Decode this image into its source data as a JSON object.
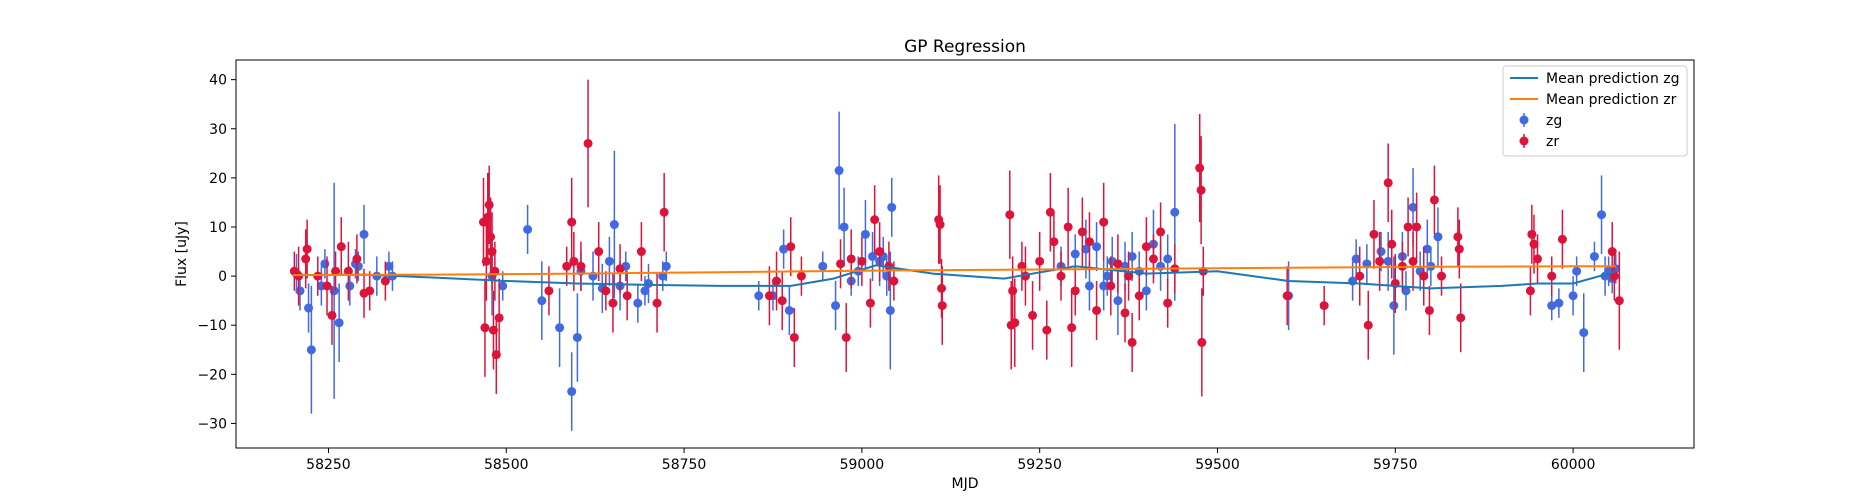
{
  "chart_data": {
    "type": "scatter",
    "title": "GP Regression",
    "xlabel": "MJD",
    "ylabel": "Flux [uJy]",
    "xlim": [
      58120,
      60170
    ],
    "ylim": [
      -35,
      44
    ],
    "xticks": [
      58250,
      58500,
      58750,
      59000,
      59250,
      59500,
      59750,
      60000
    ],
    "yticks": [
      -30,
      -20,
      -10,
      0,
      10,
      20,
      30,
      40
    ],
    "ytick_labels": [
      "−30",
      "−20",
      "−10",
      "0",
      "10",
      "20",
      "30",
      "40"
    ],
    "grid": false,
    "legend_position": "top-right",
    "mean_series": [
      {
        "name": "Mean prediction zg",
        "color": "#1f77b4",
        "x": [
          58200,
          58300,
          58400,
          58500,
          58600,
          58700,
          58800,
          58900,
          58960,
          59020,
          59100,
          59200,
          59300,
          59400,
          59500,
          59600,
          59700,
          59800,
          59900,
          59950,
          60000,
          60050,
          60060
        ],
        "y": [
          0.2,
          0.3,
          -0.3,
          -1.0,
          -1.5,
          -1.8,
          -2.0,
          -2.0,
          -0.5,
          2.2,
          0.5,
          -0.5,
          2.0,
          0.5,
          1.0,
          -1.0,
          -1.5,
          -2.5,
          -2.0,
          -1.5,
          -1.5,
          0.5,
          1.0
        ]
      },
      {
        "name": "Mean prediction zr",
        "color": "#ff7f0e",
        "x": [
          58200,
          58400,
          58600,
          58800,
          59000,
          59200,
          59400,
          59600,
          59800,
          60000,
          60060
        ],
        "y": [
          0.2,
          0.3,
          0.5,
          0.8,
          1.1,
          1.3,
          1.5,
          1.7,
          1.9,
          2.0,
          2.0
        ]
      }
    ],
    "series": [
      {
        "name": "zg",
        "color": "#4169e1",
        "points": [
          [
            58205,
            0.5,
            4
          ],
          [
            58210,
            -3,
            4
          ],
          [
            58222,
            -6.5,
            5
          ],
          [
            58226,
            -15,
            13
          ],
          [
            58240,
            -2,
            4
          ],
          [
            58245,
            2.5,
            3
          ],
          [
            58258,
            -3,
            22
          ],
          [
            58265,
            -9.5,
            8
          ],
          [
            58280,
            -2,
            4
          ],
          [
            58288,
            2.5,
            3
          ],
          [
            58292,
            2,
            3
          ],
          [
            58300,
            8.5,
            6
          ],
          [
            58318,
            0,
            4
          ],
          [
            58335,
            2,
            3
          ],
          [
            58340,
            0,
            3
          ],
          [
            58480,
            0,
            8
          ],
          [
            58495,
            -2,
            3
          ],
          [
            58530,
            9.5,
            5
          ],
          [
            58550,
            -5,
            8
          ],
          [
            58575,
            -10.5,
            8
          ],
          [
            58592,
            -23.5,
            8
          ],
          [
            58600,
            -12.5,
            9
          ],
          [
            58605,
            1,
            4
          ],
          [
            58622,
            0,
            5
          ],
          [
            58635,
            -2.5,
            5
          ],
          [
            58645,
            3,
            5
          ],
          [
            58652,
            10.5,
            15
          ],
          [
            58660,
            -2,
            5
          ],
          [
            58668,
            2,
            3
          ],
          [
            58685,
            -5.5,
            4
          ],
          [
            58695,
            -3,
            3
          ],
          [
            58700,
            -1.5,
            4
          ],
          [
            58720,
            0,
            3
          ],
          [
            58725,
            2,
            3
          ],
          [
            58855,
            -4,
            3
          ],
          [
            58875,
            -4,
            3
          ],
          [
            58890,
            5.5,
            4
          ],
          [
            58898,
            -7,
            5
          ],
          [
            58945,
            2,
            3
          ],
          [
            58963,
            -6,
            5
          ],
          [
            58968,
            21.5,
            12
          ],
          [
            58975,
            10,
            8
          ],
          [
            58985,
            -1,
            3
          ],
          [
            58995,
            1,
            3
          ],
          [
            59005,
            8.5,
            7
          ],
          [
            59015,
            4,
            5
          ],
          [
            59025,
            3,
            5
          ],
          [
            59030,
            4,
            4
          ],
          [
            59035,
            0,
            4
          ],
          [
            59040,
            -7,
            12
          ],
          [
            59042,
            14,
            6
          ],
          [
            59280,
            2,
            4
          ],
          [
            59300,
            4.5,
            4
          ],
          [
            59315,
            5.5,
            6
          ],
          [
            59320,
            -2,
            5
          ],
          [
            59330,
            6,
            5
          ],
          [
            59340,
            -2,
            5
          ],
          [
            59345,
            0,
            4
          ],
          [
            59352,
            3,
            5
          ],
          [
            59360,
            -5,
            7
          ],
          [
            59370,
            2,
            5
          ],
          [
            59380,
            4,
            5
          ],
          [
            59390,
            1,
            4
          ],
          [
            59400,
            -3,
            4
          ],
          [
            59410,
            6.5,
            7
          ],
          [
            59420,
            2,
            5
          ],
          [
            59430,
            3.5,
            5
          ],
          [
            59440,
            13,
            18
          ],
          [
            59600,
            -4,
            7
          ],
          [
            59690,
            -1,
            4
          ],
          [
            59695,
            3.5,
            4
          ],
          [
            59710,
            2.5,
            4
          ],
          [
            59730,
            5,
            4
          ],
          [
            59740,
            3,
            6
          ],
          [
            59748,
            -6,
            10
          ],
          [
            59760,
            4,
            5
          ],
          [
            59765,
            -3,
            4
          ],
          [
            59775,
            14,
            8
          ],
          [
            59785,
            1,
            4
          ],
          [
            59795,
            5.5,
            6
          ],
          [
            59800,
            2,
            4
          ],
          [
            59810,
            8,
            6
          ],
          [
            59970,
            -6,
            3
          ],
          [
            59980,
            -5.5,
            3
          ],
          [
            60000,
            -4,
            4
          ],
          [
            60005,
            1,
            3
          ],
          [
            60015,
            -11.5,
            8
          ],
          [
            60030,
            4,
            3
          ],
          [
            60040,
            12.5,
            8
          ],
          [
            60045,
            0,
            4
          ],
          [
            60050,
            1,
            3
          ],
          [
            60055,
            -0.5,
            3
          ],
          [
            60060,
            1.5,
            3
          ]
        ]
      },
      {
        "name": "zr",
        "color": "#dc143c",
        "points": [
          [
            58202,
            1,
            4
          ],
          [
            58208,
            0,
            6
          ],
          [
            58218,
            3.5,
            6
          ],
          [
            58220,
            5.5,
            6
          ],
          [
            58235,
            0,
            4
          ],
          [
            58248,
            -2,
            6
          ],
          [
            58255,
            -8,
            6
          ],
          [
            58260,
            1,
            4
          ],
          [
            58268,
            6,
            6
          ],
          [
            58278,
            1,
            6
          ],
          [
            58290,
            3.5,
            5
          ],
          [
            58300,
            -3.5,
            5
          ],
          [
            58308,
            -3,
            4
          ],
          [
            58330,
            -1,
            4
          ],
          [
            58468,
            11,
            9
          ],
          [
            58470,
            -10.5,
            10
          ],
          [
            58472,
            3,
            8
          ],
          [
            58474,
            12,
            9
          ],
          [
            58476,
            14.5,
            8
          ],
          [
            58478,
            8,
            8
          ],
          [
            58480,
            5,
            8
          ],
          [
            58482,
            -11,
            8
          ],
          [
            58484,
            1,
            6
          ],
          [
            58486,
            -16,
            8
          ],
          [
            58490,
            -8.5,
            8
          ],
          [
            58560,
            -3,
            5
          ],
          [
            58585,
            2,
            4
          ],
          [
            58592,
            11,
            9
          ],
          [
            58595,
            3,
            6
          ],
          [
            58605,
            2,
            5
          ],
          [
            58615,
            27,
            13
          ],
          [
            58630,
            5,
            6
          ],
          [
            58640,
            -3,
            4
          ],
          [
            58650,
            -5.5,
            6
          ],
          [
            58660,
            1.5,
            5
          ],
          [
            58670,
            -4,
            5
          ],
          [
            58690,
            5,
            6
          ],
          [
            58712,
            -5.5,
            6
          ],
          [
            58722,
            13,
            8
          ],
          [
            58870,
            -4,
            6
          ],
          [
            58880,
            -1,
            6
          ],
          [
            58888,
            -5,
            6
          ],
          [
            58900,
            6,
            6
          ],
          [
            58905,
            -12.5,
            6
          ],
          [
            58915,
            0,
            4
          ],
          [
            58970,
            2.5,
            5
          ],
          [
            58978,
            -12.5,
            7
          ],
          [
            58985,
            3.5,
            6
          ],
          [
            59000,
            3,
            5
          ],
          [
            59012,
            -5.5,
            5
          ],
          [
            59018,
            11.5,
            7
          ],
          [
            59025,
            5,
            6
          ],
          [
            59038,
            2,
            5
          ],
          [
            59045,
            -1,
            4
          ],
          [
            59108,
            11.5,
            9
          ],
          [
            59110,
            10.5,
            8
          ],
          [
            59112,
            -2.5,
            6
          ],
          [
            59113,
            -6,
            8
          ],
          [
            59208,
            12.5,
            9
          ],
          [
            59210,
            -10,
            9
          ],
          [
            59212,
            -3,
            7
          ],
          [
            59215,
            -9.5,
            9
          ],
          [
            59225,
            2,
            5
          ],
          [
            59230,
            0,
            6
          ],
          [
            59240,
            -8,
            7
          ],
          [
            59250,
            3,
            6
          ],
          [
            59260,
            -11,
            6
          ],
          [
            59265,
            13,
            8
          ],
          [
            59270,
            7,
            6
          ],
          [
            59280,
            0,
            5
          ],
          [
            59290,
            10,
            8
          ],
          [
            59295,
            -10.5,
            8
          ],
          [
            59300,
            -3,
            5
          ],
          [
            59310,
            9,
            7
          ],
          [
            59320,
            7,
            6
          ],
          [
            59330,
            -7,
            6
          ],
          [
            59340,
            11,
            8
          ],
          [
            59350,
            -2,
            6
          ],
          [
            59360,
            2.5,
            6
          ],
          [
            59370,
            -7.5,
            6
          ],
          [
            59375,
            0,
            5
          ],
          [
            59380,
            -13.5,
            6
          ],
          [
            59390,
            -4,
            5
          ],
          [
            59400,
            6,
            6
          ],
          [
            59410,
            3.5,
            5
          ],
          [
            59420,
            9,
            6
          ],
          [
            59430,
            -5.5,
            5
          ],
          [
            59440,
            1.5,
            5
          ],
          [
            59475,
            22,
            11
          ],
          [
            59477,
            17.5,
            11
          ],
          [
            59478,
            -13.5,
            11
          ],
          [
            59480,
            1,
            5
          ],
          [
            59598,
            -4,
            6
          ],
          [
            59650,
            -6,
            4
          ],
          [
            59700,
            0,
            6
          ],
          [
            59712,
            -10,
            7
          ],
          [
            59720,
            8.5,
            7
          ],
          [
            59728,
            3,
            6
          ],
          [
            59740,
            19,
            8
          ],
          [
            59745,
            6.5,
            7
          ],
          [
            59750,
            -1.5,
            6
          ],
          [
            59760,
            2,
            5
          ],
          [
            59768,
            10,
            6
          ],
          [
            59775,
            3,
            6
          ],
          [
            59780,
            10,
            7
          ],
          [
            59790,
            0,
            6
          ],
          [
            59798,
            -7,
            5
          ],
          [
            59805,
            15.5,
            7
          ],
          [
            59815,
            0,
            4
          ],
          [
            59838,
            8,
            6
          ],
          [
            59840,
            5.5,
            6
          ],
          [
            59842,
            -8.5,
            7
          ],
          [
            59940,
            -3,
            5
          ],
          [
            59942,
            8.5,
            6
          ],
          [
            59945,
            6.5,
            6
          ],
          [
            59950,
            3.5,
            5
          ],
          [
            59970,
            0,
            4
          ],
          [
            59985,
            7.5,
            6
          ],
          [
            60055,
            5,
            6
          ],
          [
            60058,
            0,
            5
          ],
          [
            60065,
            -5,
            10
          ]
        ]
      }
    ]
  }
}
